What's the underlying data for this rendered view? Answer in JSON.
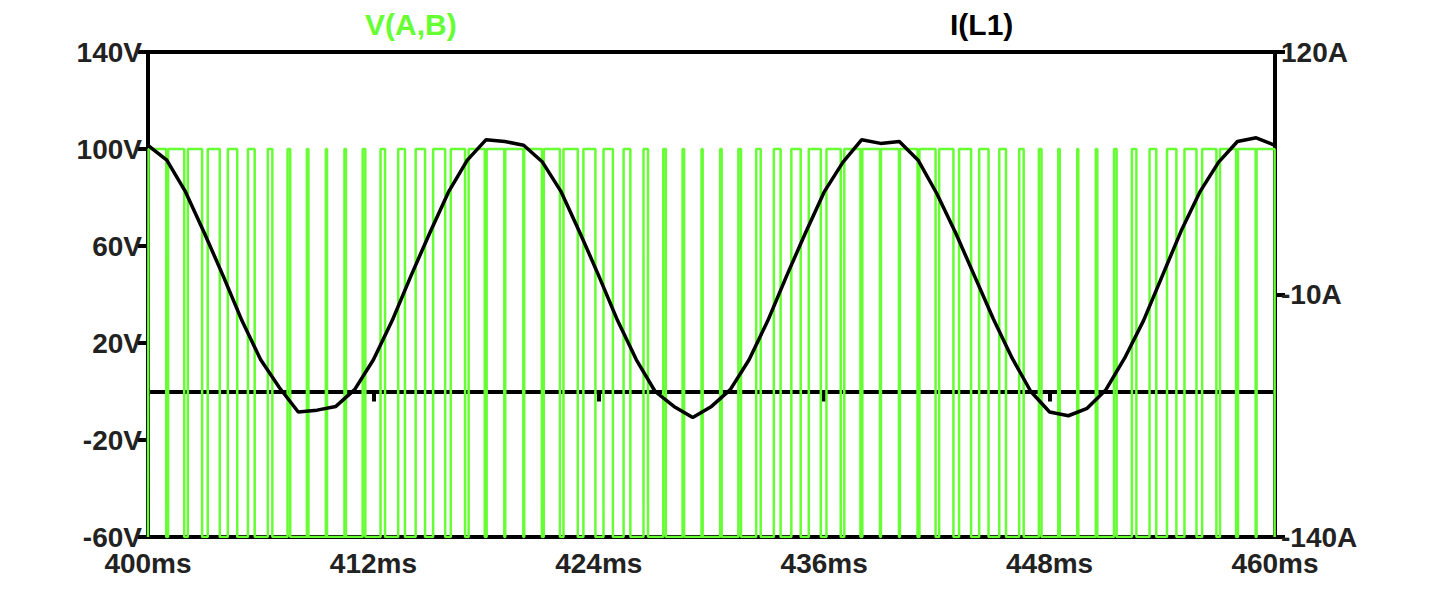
{
  "chart_data": {
    "type": "line",
    "grid": false,
    "xlim": [
      400,
      460
    ],
    "xticks": [
      {
        "value": 400,
        "label": "400ms"
      },
      {
        "value": 412,
        "label": "412ms"
      },
      {
        "value": 424,
        "label": "424ms"
      },
      {
        "value": 436,
        "label": "436ms"
      },
      {
        "value": 448,
        "label": "448ms"
      },
      {
        "value": 460,
        "label": "460ms"
      }
    ],
    "ylim": [
      -60,
      140
    ],
    "yticks": [
      {
        "value": -60,
        "label": "-60V"
      },
      {
        "value": -20,
        "label": "-20V"
      },
      {
        "value": 20,
        "label": "20V"
      },
      {
        "value": 60,
        "label": "60V"
      },
      {
        "value": 100,
        "label": "100V"
      },
      {
        "value": 140,
        "label": "140V"
      }
    ],
    "y2lim": [
      -140,
      120
    ],
    "y2ticks": [
      {
        "value": -140,
        "label": "-140A"
      },
      {
        "value": -10,
        "label": "-10A"
      },
      {
        "value": 120,
        "label": "120A"
      }
    ],
    "series": [
      {
        "name": "V(A,B)",
        "color": "#66ff33",
        "axis": "y",
        "line_style": "step",
        "x": [
          400,
          400.03,
          400.97,
          401.07,
          401.93,
          402.12,
          402.88,
          403.18,
          403.82,
          404.25,
          404.75,
          405.32,
          405.68,
          406.38,
          406.62,
          407.43,
          407.57,
          408.46,
          408.54,
          409.47,
          409.53,
          410.46,
          410.54,
          411.43,
          411.57,
          412.38,
          412.62,
          413.32,
          413.68,
          414.25,
          414.75,
          415.18,
          415.82,
          416.12,
          416.88,
          417.07,
          417.93,
          418.03,
          418.97,
          419.02,
          419.98,
          420.03,
          420.97,
          421.07,
          421.93,
          422.12,
          422.88,
          423.18,
          423.82,
          424.25,
          424.75,
          425.32,
          425.68,
          426.38,
          426.62,
          427.43,
          427.57,
          428.46,
          428.54,
          429.47,
          429.53,
          430.46,
          430.54,
          431.43,
          431.57,
          432.38,
          432.62,
          433.32,
          433.68,
          434.25,
          434.75,
          435.18,
          435.82,
          436.12,
          436.88,
          437.07,
          437.93,
          438.03,
          438.97,
          439.02,
          439.98,
          440.03,
          440.97,
          441.07,
          441.93,
          442.12,
          442.88,
          443.18,
          443.82,
          444.25,
          444.75,
          445.32,
          445.68,
          446.38,
          446.62,
          447.43,
          447.57,
          448.46,
          448.54,
          449.47,
          449.53,
          450.46,
          450.54,
          451.43,
          451.57,
          452.38,
          452.62,
          453.32,
          453.68,
          454.25,
          454.75,
          455.18,
          455.82,
          456.12,
          456.88,
          457.07,
          457.93,
          458.03,
          458.97,
          459.02,
          459.98,
          460
        ],
        "values": [
          -60,
          100,
          -60,
          100,
          -60,
          100,
          -60,
          100,
          -60,
          100,
          -60,
          100,
          -60,
          100,
          -60,
          100,
          -60,
          100,
          -60,
          100,
          -60,
          100,
          -60,
          100,
          -60,
          100,
          -60,
          100,
          -60,
          100,
          -60,
          100,
          -60,
          100,
          -60,
          100,
          -60,
          100,
          -60,
          100,
          -60,
          100,
          -60,
          100,
          -60,
          100,
          -60,
          100,
          -60,
          100,
          -60,
          100,
          -60,
          100,
          -60,
          100,
          -60,
          100,
          -60,
          100,
          -60,
          100,
          -60,
          100,
          -60,
          100,
          -60,
          100,
          -60,
          100,
          -60,
          100,
          -60,
          100,
          -60,
          100,
          -60,
          100,
          -60,
          100,
          -60,
          100,
          -60,
          100,
          -60,
          100,
          -60,
          100,
          -60,
          100,
          -60,
          100,
          -60,
          100,
          -60,
          100,
          -60,
          100,
          -60,
          100,
          -60,
          100,
          -60,
          100,
          -60,
          100,
          -60,
          100,
          -60,
          100,
          -60,
          100,
          -60,
          100,
          -60,
          100,
          -60,
          100,
          -60,
          100,
          -60,
          -60
        ]
      },
      {
        "name": "I(L1)",
        "color": "#000000",
        "axis": "y2",
        "line_style": "solid",
        "x": [
          400,
          401,
          402,
          403,
          404,
          405,
          406,
          407,
          408,
          409,
          410,
          411,
          412,
          413,
          414,
          415,
          416,
          417,
          418,
          419,
          420,
          421,
          422,
          423,
          424,
          425,
          426,
          427,
          428,
          429,
          430,
          431,
          432,
          433,
          434,
          435,
          436,
          437,
          438,
          439,
          440,
          441,
          442,
          443,
          444,
          445,
          446,
          447,
          448,
          449,
          450,
          451,
          452,
          453,
          454,
          455,
          456,
          457,
          458,
          459,
          460
        ],
        "values": [
          70,
          62,
          45,
          23,
          0,
          -24,
          -45,
          -60,
          -73,
          -72,
          -70,
          -61,
          -45,
          -24,
          0,
          23,
          45,
          62,
          73,
          72,
          70,
          61,
          45,
          23,
          0,
          -24,
          -45,
          -62,
          -70,
          -76,
          -70,
          -61,
          -45,
          -24,
          0,
          23,
          45,
          61,
          73,
          71,
          72,
          62,
          44,
          23,
          0,
          -23,
          -44,
          -62,
          -73,
          -75,
          -71,
          -61,
          -44,
          -24,
          0,
          24,
          45,
          61,
          72,
          74,
          70
        ]
      }
    ]
  }
}
